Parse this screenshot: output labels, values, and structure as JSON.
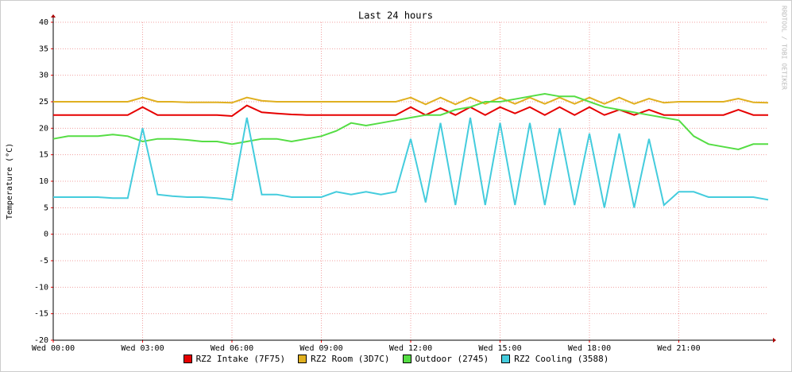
{
  "chart_data": {
    "type": "line",
    "title": "Last 24 hours",
    "y_label": "Temperature (°C)",
    "watermark": "RRDTOOL / TOBI OETIKER",
    "x": [
      0,
      0.5,
      1,
      1.5,
      2,
      2.5,
      3,
      3.5,
      4,
      4.5,
      5,
      5.5,
      6,
      6.5,
      7,
      7.5,
      8,
      8.5,
      9,
      9.5,
      10,
      10.5,
      11,
      11.5,
      12,
      12.5,
      13,
      13.5,
      14,
      14.5,
      15,
      15.5,
      16,
      16.5,
      17,
      17.5,
      18,
      18.5,
      19,
      19.5,
      20,
      20.5,
      21,
      21.5,
      22,
      22.5,
      23,
      23.5,
      24
    ],
    "xlim": [
      0,
      24
    ],
    "xticks": [
      {
        "value": 0,
        "label": "Wed 00:00"
      },
      {
        "value": 3,
        "label": "Wed 03:00"
      },
      {
        "value": 6,
        "label": "Wed 06:00"
      },
      {
        "value": 9,
        "label": "Wed 09:00"
      },
      {
        "value": 12,
        "label": "Wed 12:00"
      },
      {
        "value": 15,
        "label": "Wed 15:00"
      },
      {
        "value": 18,
        "label": "Wed 18:00"
      },
      {
        "value": 21,
        "label": "Wed 21:00"
      }
    ],
    "ylim": [
      -20,
      40
    ],
    "yticks": [
      -20,
      -15,
      -10,
      -5,
      0,
      5,
      10,
      15,
      20,
      25,
      30,
      35,
      40
    ],
    "grid": true,
    "series": [
      {
        "name": "RZ2 Intake (7F75)",
        "color": "#e60000",
        "values": [
          22.5,
          22.5,
          22.5,
          22.5,
          22.5,
          22.5,
          24,
          22.5,
          22.5,
          22.5,
          22.5,
          22.5,
          22.3,
          24.3,
          23,
          22.8,
          22.6,
          22.5,
          22.5,
          22.5,
          22.5,
          22.5,
          22.5,
          22.5,
          24,
          22.5,
          23.8,
          22.5,
          24,
          22.5,
          24,
          22.8,
          24,
          22.5,
          24,
          22.5,
          24,
          22.5,
          23.5,
          22.5,
          23.5,
          22.5,
          22.5,
          22.5,
          22.5,
          22.5,
          23.5,
          22.5,
          22.5
        ]
      },
      {
        "name": "RZ2 Room (3D7C)",
        "color": "#e0b020",
        "values": [
          25,
          25,
          25,
          25,
          25,
          25,
          25.8,
          25,
          25,
          24.9,
          24.9,
          24.9,
          24.8,
          25.8,
          25.2,
          25,
          25,
          25,
          25,
          25,
          25,
          25,
          25,
          25,
          25.8,
          24.5,
          25.8,
          24.5,
          25.8,
          24.6,
          25.8,
          24.6,
          25.8,
          24.6,
          25.8,
          24.6,
          25.8,
          24.6,
          25.8,
          24.6,
          25.6,
          24.8,
          25,
          25,
          25,
          25,
          25.6,
          24.9,
          24.8
        ]
      },
      {
        "name": "Outdoor (2745)",
        "color": "#55dd44",
        "values": [
          18,
          18.5,
          18.5,
          18.5,
          18.8,
          18.5,
          17.5,
          18,
          18,
          17.8,
          17.5,
          17.5,
          17,
          17.5,
          18,
          18,
          17.5,
          18,
          18.5,
          19.5,
          21,
          20.5,
          21,
          21.5,
          22,
          22.5,
          22.5,
          23.5,
          24,
          25,
          25,
          25.5,
          26,
          26.5,
          26,
          26,
          25,
          24,
          23.5,
          23,
          22.5,
          22,
          21.5,
          18.5,
          17,
          16.5,
          16,
          17,
          17
        ]
      },
      {
        "name": "RZ2 Cooling (3588)",
        "color": "#44ccdd",
        "values": [
          7,
          7,
          7,
          7,
          6.8,
          6.8,
          20,
          7.5,
          7.2,
          7,
          7,
          6.8,
          6.5,
          22,
          7.5,
          7.5,
          7,
          7,
          7,
          8,
          7.5,
          8,
          7.5,
          8,
          18,
          6,
          21,
          5.5,
          22,
          5.5,
          21,
          5.5,
          21,
          5.5,
          20,
          5.5,
          19,
          5,
          19,
          5,
          18,
          5.5,
          8,
          8,
          7,
          7,
          7,
          7,
          6.5
        ]
      }
    ]
  }
}
